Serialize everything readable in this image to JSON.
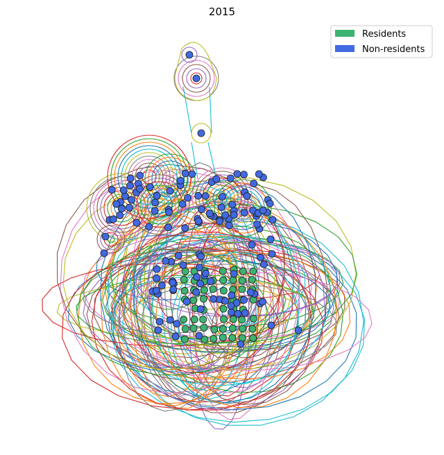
{
  "title": "2015",
  "legend": [
    {
      "label": "Residents",
      "color": "#3cb371"
    },
    {
      "label": "Non-residents",
      "color": "#4169e1"
    }
  ],
  "hull_palette": [
    "#1f77b4",
    "#ff7f0e",
    "#2ca02c",
    "#d62728",
    "#9467bd",
    "#8c564b",
    "#e377c2",
    "#7f7f7f",
    "#bcbd22",
    "#17becf"
  ]
}
